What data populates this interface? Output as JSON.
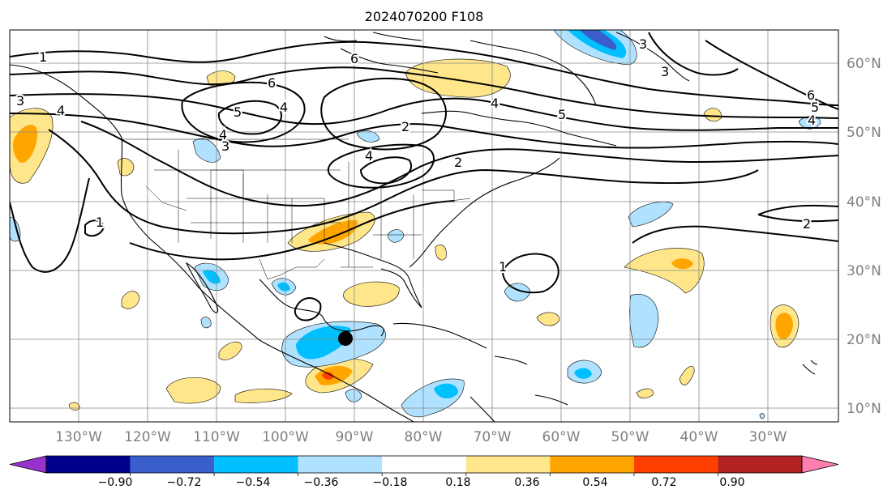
{
  "title": "2024070200 F108",
  "lat_labels": [
    "60°N",
    "50°N",
    "40°N",
    "30°N",
    "20°N",
    "10°N"
  ],
  "lon_labels": [
    "130°W",
    "120°W",
    "110°W",
    "100°W",
    "90°W",
    "80°W",
    "70°W",
    "60°W",
    "50°W",
    "40°W",
    "30°W"
  ],
  "colorbar": {
    "tick_labels": [
      "−0.90",
      "−0.72",
      "−0.54",
      "−0.36",
      "−0.18",
      "0.18",
      "0.36",
      "0.54",
      "0.72",
      "0.90"
    ],
    "colors": [
      "#9932cc",
      "#00008b",
      "#3a5fcd",
      "#00bfff",
      "#b0e2ff",
      "#ffffff",
      "#ffe68a",
      "#ffa500",
      "#ff4000",
      "#b22222",
      "#ff7eb0"
    ]
  },
  "contour_labels": [
    "1",
    "3",
    "4",
    "6",
    "5",
    "4",
    "6",
    "2",
    "4",
    "5",
    "3",
    "6",
    "5",
    "4",
    "2",
    "1",
    "1",
    "4",
    "3",
    "2",
    "3",
    "4"
  ],
  "storm_marker": "hurricane-center"
}
